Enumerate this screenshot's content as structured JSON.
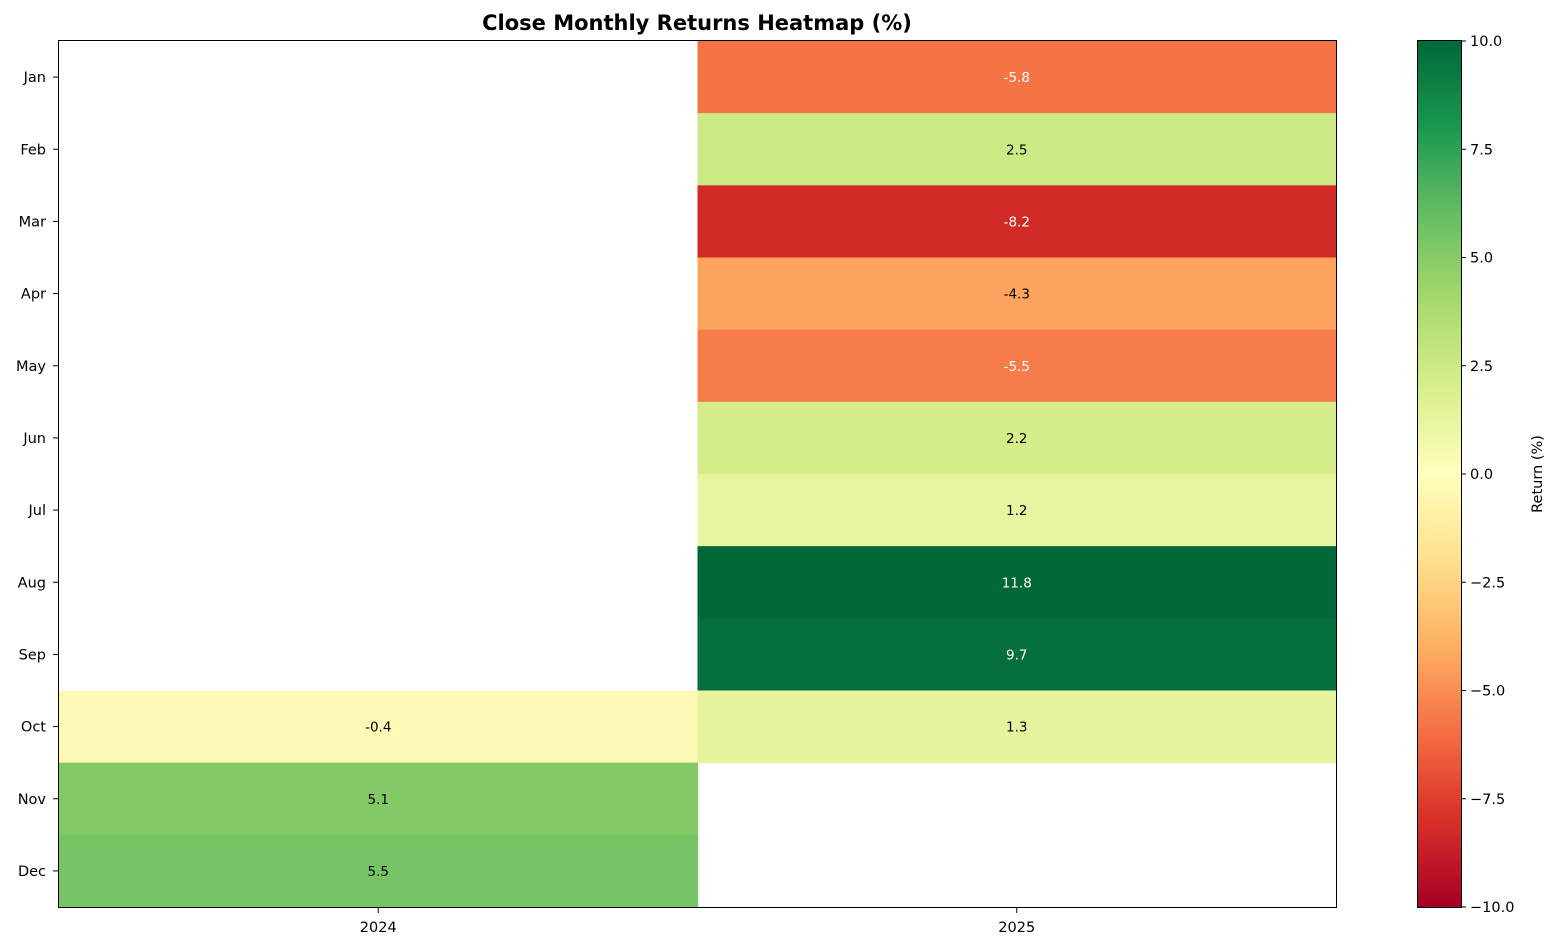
{
  "chart_data": {
    "type": "heatmap",
    "title": "Close Monthly Returns Heatmap (%)",
    "x_categories": [
      "2024",
      "2025"
    ],
    "y_categories": [
      "Jan",
      "Feb",
      "Mar",
      "Apr",
      "May",
      "Jun",
      "Jul",
      "Aug",
      "Sep",
      "Oct",
      "Nov",
      "Dec"
    ],
    "values": [
      [
        null,
        -5.8
      ],
      [
        null,
        2.5
      ],
      [
        null,
        -8.2
      ],
      [
        null,
        -4.3
      ],
      [
        null,
        -5.5
      ],
      [
        null,
        2.2
      ],
      [
        null,
        1.2
      ],
      [
        null,
        11.8
      ],
      [
        null,
        9.7
      ],
      [
        -0.4,
        1.3
      ],
      [
        5.1,
        null
      ],
      [
        5.5,
        null
      ]
    ],
    "colormap": "RdYlGn",
    "color_range": [
      -10,
      10
    ],
    "colorbar": {
      "label": "Return (%)",
      "ticks": [
        "−10.0",
        "−7.5",
        "−5.0",
        "−2.5",
        "0.0",
        "2.5",
        "5.0",
        "7.5",
        "10.0"
      ],
      "tick_values": [
        -10,
        -7.5,
        -5,
        -2.5,
        0,
        2.5,
        5,
        7.5,
        10
      ]
    },
    "grid": false
  }
}
